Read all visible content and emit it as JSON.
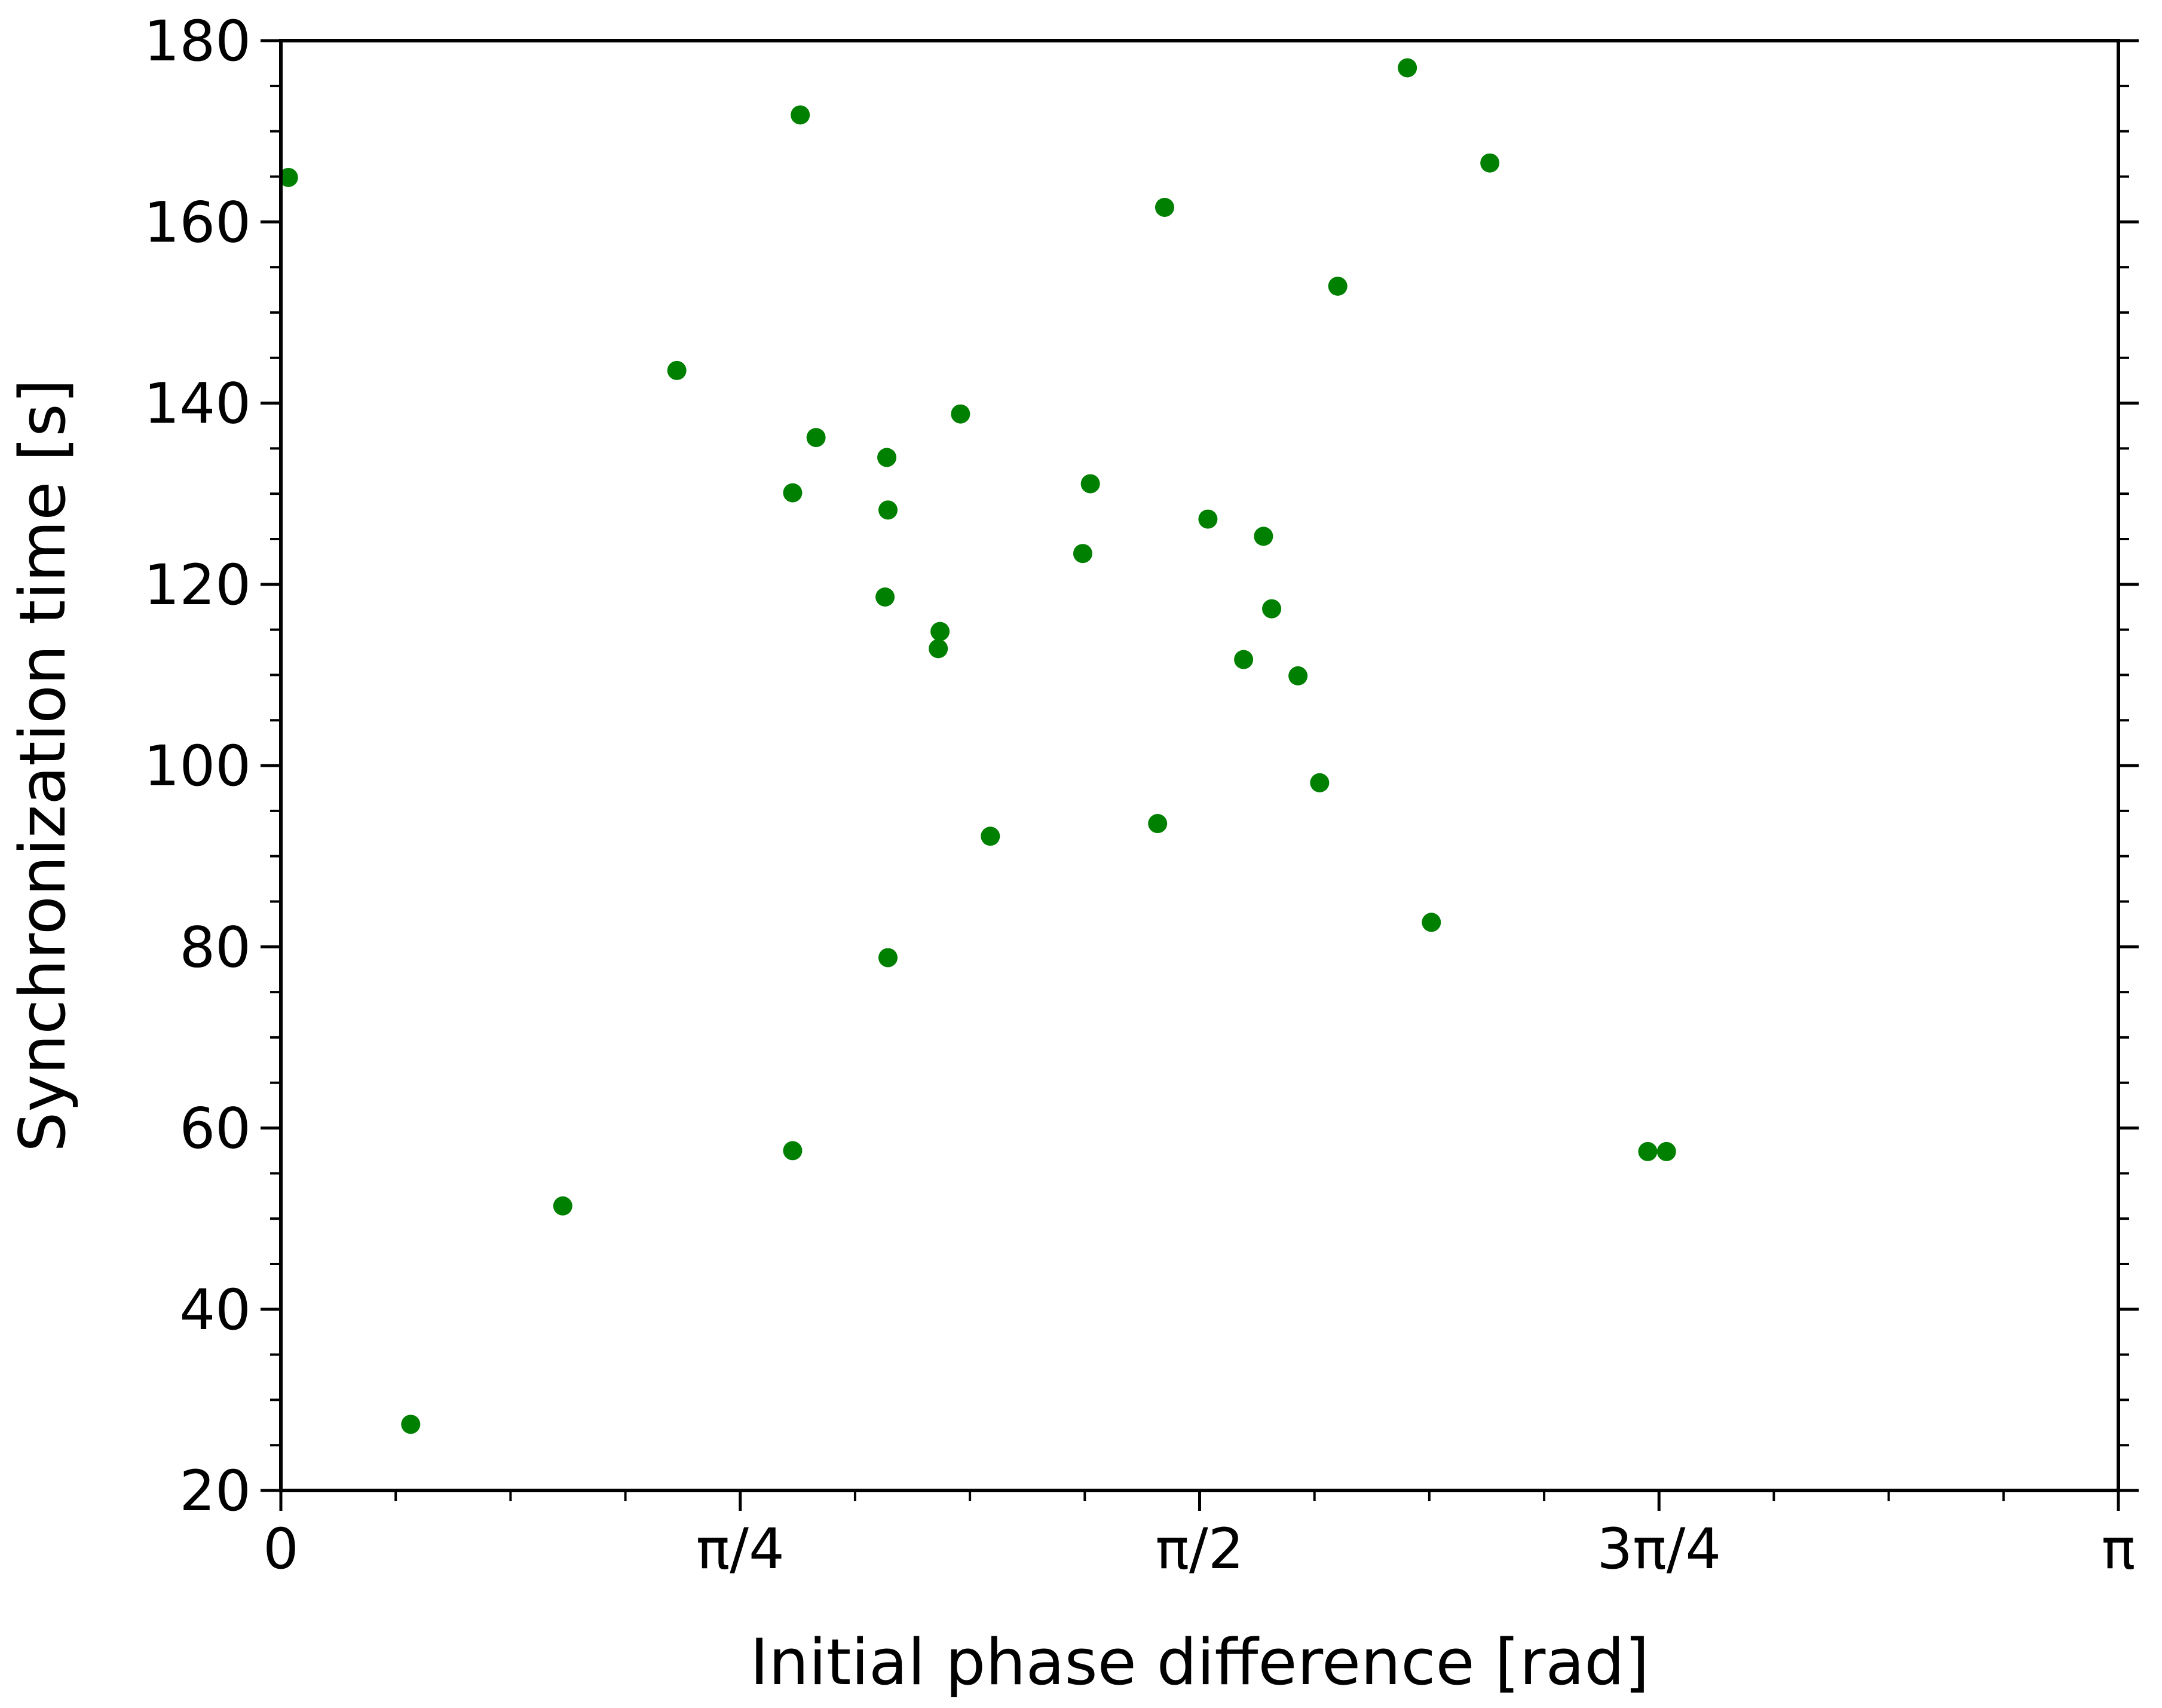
{
  "chart_data": {
    "type": "scatter",
    "xlabel": "Initial phase difference [rad]",
    "ylabel": "Synchronization time [s]",
    "xlim": [
      0,
      3.14159
    ],
    "ylim": [
      20,
      180
    ],
    "x_ticks": [
      {
        "value": 0,
        "label": "0"
      },
      {
        "value": 0.785398,
        "label": "π/4"
      },
      {
        "value": 1.570796,
        "label": "π/2"
      },
      {
        "value": 2.356194,
        "label": "3π/4"
      },
      {
        "value": 3.141593,
        "label": "π"
      }
    ],
    "x_minor_step": 0.19635,
    "y_ticks": [
      20,
      40,
      60,
      80,
      100,
      120,
      140,
      160,
      180
    ],
    "y_minor_step": 5,
    "marker_color": "#008000",
    "grid": false,
    "points": [
      {
        "x": 0.013,
        "y": 164.9
      },
      {
        "x": 0.222,
        "y": 27.3
      },
      {
        "x": 0.482,
        "y": 51.4
      },
      {
        "x": 0.677,
        "y": 143.6
      },
      {
        "x": 0.875,
        "y": 57.5
      },
      {
        "x": 0.875,
        "y": 130.1
      },
      {
        "x": 0.888,
        "y": 171.8
      },
      {
        "x": 0.915,
        "y": 136.2
      },
      {
        "x": 1.033,
        "y": 118.6
      },
      {
        "x": 1.036,
        "y": 134.0
      },
      {
        "x": 1.038,
        "y": 128.2
      },
      {
        "x": 1.038,
        "y": 78.8
      },
      {
        "x": 1.124,
        "y": 112.9
      },
      {
        "x": 1.127,
        "y": 114.8
      },
      {
        "x": 1.162,
        "y": 138.8
      },
      {
        "x": 1.213,
        "y": 92.2
      },
      {
        "x": 1.371,
        "y": 123.4
      },
      {
        "x": 1.384,
        "y": 131.1
      },
      {
        "x": 1.499,
        "y": 93.6
      },
      {
        "x": 1.511,
        "y": 161.6
      },
      {
        "x": 1.585,
        "y": 127.2
      },
      {
        "x": 1.646,
        "y": 111.7
      },
      {
        "x": 1.68,
        "y": 125.3
      },
      {
        "x": 1.694,
        "y": 117.3
      },
      {
        "x": 1.739,
        "y": 109.9
      },
      {
        "x": 1.776,
        "y": 98.1
      },
      {
        "x": 1.807,
        "y": 152.9
      },
      {
        "x": 1.926,
        "y": 177.0
      },
      {
        "x": 1.967,
        "y": 82.7
      },
      {
        "x": 2.067,
        "y": 166.5
      },
      {
        "x": 2.337,
        "y": 57.4
      },
      {
        "x": 2.369,
        "y": 57.4
      }
    ]
  }
}
